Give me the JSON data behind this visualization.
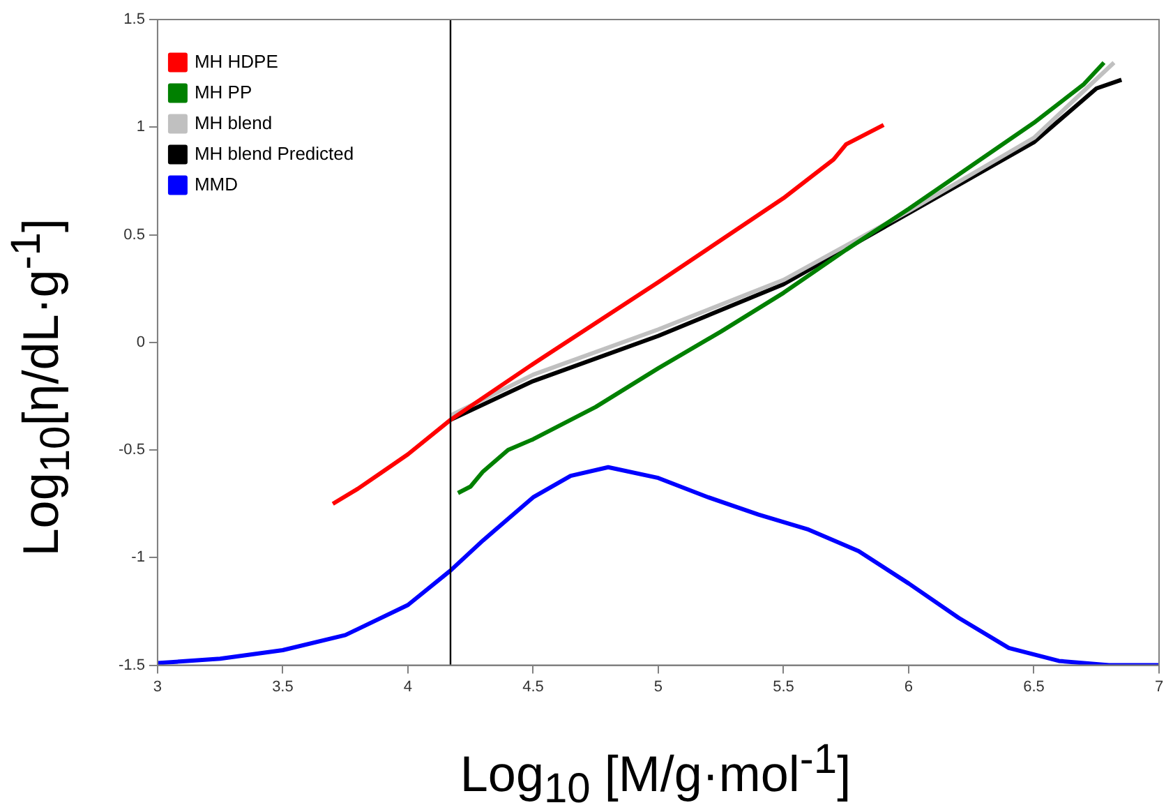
{
  "chart_data": {
    "type": "line",
    "xlabel": "Log$_{10}$ [M/g·mol$^{-1}$]",
    "ylabel": "Log$_{10}$[η/dL·g$^{-1}$]",
    "xlim": [
      3,
      7
    ],
    "xticks": [
      3,
      3.5,
      4,
      4.5,
      5,
      5.5,
      6,
      6.5,
      7
    ],
    "ylim": [
      -1.5,
      1.5
    ],
    "yticks": [
      -1.5,
      -1,
      -0.5,
      0,
      0.5,
      1,
      1.5
    ],
    "grid": false,
    "legend": "top left",
    "marker": "none",
    "line_style": "solid",
    "ref_lines": [
      {
        "axis": "x",
        "value": 4.17,
        "color": "#000000"
      }
    ],
    "series": [
      {
        "name": "MH HDPE",
        "color": "#ff0000",
        "x": [
          3.7,
          3.8,
          3.9,
          4.0,
          4.17,
          4.5,
          5.0,
          5.5,
          5.7,
          5.75,
          5.8,
          5.9
        ],
        "values": [
          -0.75,
          -0.68,
          -0.6,
          -0.52,
          -0.36,
          -0.1,
          0.28,
          0.67,
          0.85,
          0.92,
          0.95,
          1.01
        ]
      },
      {
        "name": "MH PP",
        "color": "#008000",
        "x": [
          4.2,
          4.25,
          4.3,
          4.35,
          4.4,
          4.5,
          4.75,
          5.0,
          5.25,
          5.5,
          5.75,
          6.0,
          6.25,
          6.5,
          6.7,
          6.78
        ],
        "values": [
          -0.7,
          -0.67,
          -0.6,
          -0.55,
          -0.5,
          -0.45,
          -0.3,
          -0.12,
          0.05,
          0.23,
          0.43,
          0.62,
          0.82,
          1.02,
          1.2,
          1.3
        ]
      },
      {
        "name": "MH blend",
        "color": "#c0c0c0",
        "x": [
          4.17,
          4.5,
          5.0,
          5.5,
          6.0,
          6.5,
          6.82
        ],
        "values": [
          -0.34,
          -0.15,
          0.06,
          0.29,
          0.61,
          0.95,
          1.3
        ]
      },
      {
        "name": "MH blend Predicted",
        "color": "#000000",
        "x": [
          4.17,
          4.5,
          5.0,
          5.5,
          6.0,
          6.5,
          6.75,
          6.85
        ],
        "values": [
          -0.36,
          -0.18,
          0.03,
          0.27,
          0.6,
          0.93,
          1.18,
          1.22
        ]
      },
      {
        "name": "MMD",
        "color": "#0000ff",
        "x": [
          3,
          3.25,
          3.5,
          3.75,
          4.0,
          4.17,
          4.3,
          4.5,
          4.65,
          4.8,
          5.0,
          5.2,
          5.4,
          5.6,
          5.8,
          6.0,
          6.2,
          6.4,
          6.6,
          6.8,
          7
        ],
        "values": [
          -1.49,
          -1.47,
          -1.43,
          -1.36,
          -1.22,
          -1.06,
          -0.92,
          -0.72,
          -0.62,
          -0.58,
          -0.63,
          -0.72,
          -0.8,
          -0.87,
          -0.97,
          -1.12,
          -1.28,
          -1.42,
          -1.48,
          -1.5,
          -1.5
        ]
      }
    ]
  }
}
